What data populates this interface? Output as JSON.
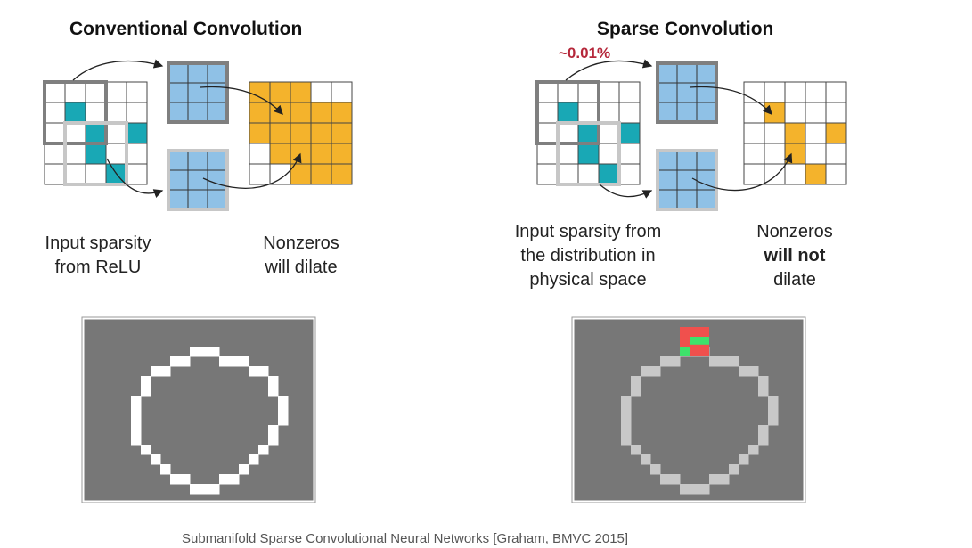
{
  "left": {
    "title": "Conventional Convolution",
    "caption_input": [
      "Input sparsity",
      "from ReLU"
    ],
    "caption_output": [
      "Nonzeros",
      "will dilate"
    ]
  },
  "right": {
    "title": "Sparse Convolution",
    "annotation": "~0.01%",
    "caption_input": [
      "Input sparsity from",
      "the distribution in",
      "physical space"
    ],
    "caption_output_1": "Nonzeros",
    "caption_output_2": "will not",
    "caption_output_3": "dilate"
  },
  "footer": "Submanifold Sparse Convolutional Neural Networks [Graham, BMVC 2015]",
  "colors": {
    "teal": "#19a8b5",
    "blue": "#8fc1e6",
    "orange": "#f4b32c",
    "gray_bg": "#777777",
    "white_pixel": "#ffffff",
    "light_pixel": "#c8c8c8",
    "red_pixel": "#f0504d",
    "green_pixel": "#3ee26b"
  }
}
